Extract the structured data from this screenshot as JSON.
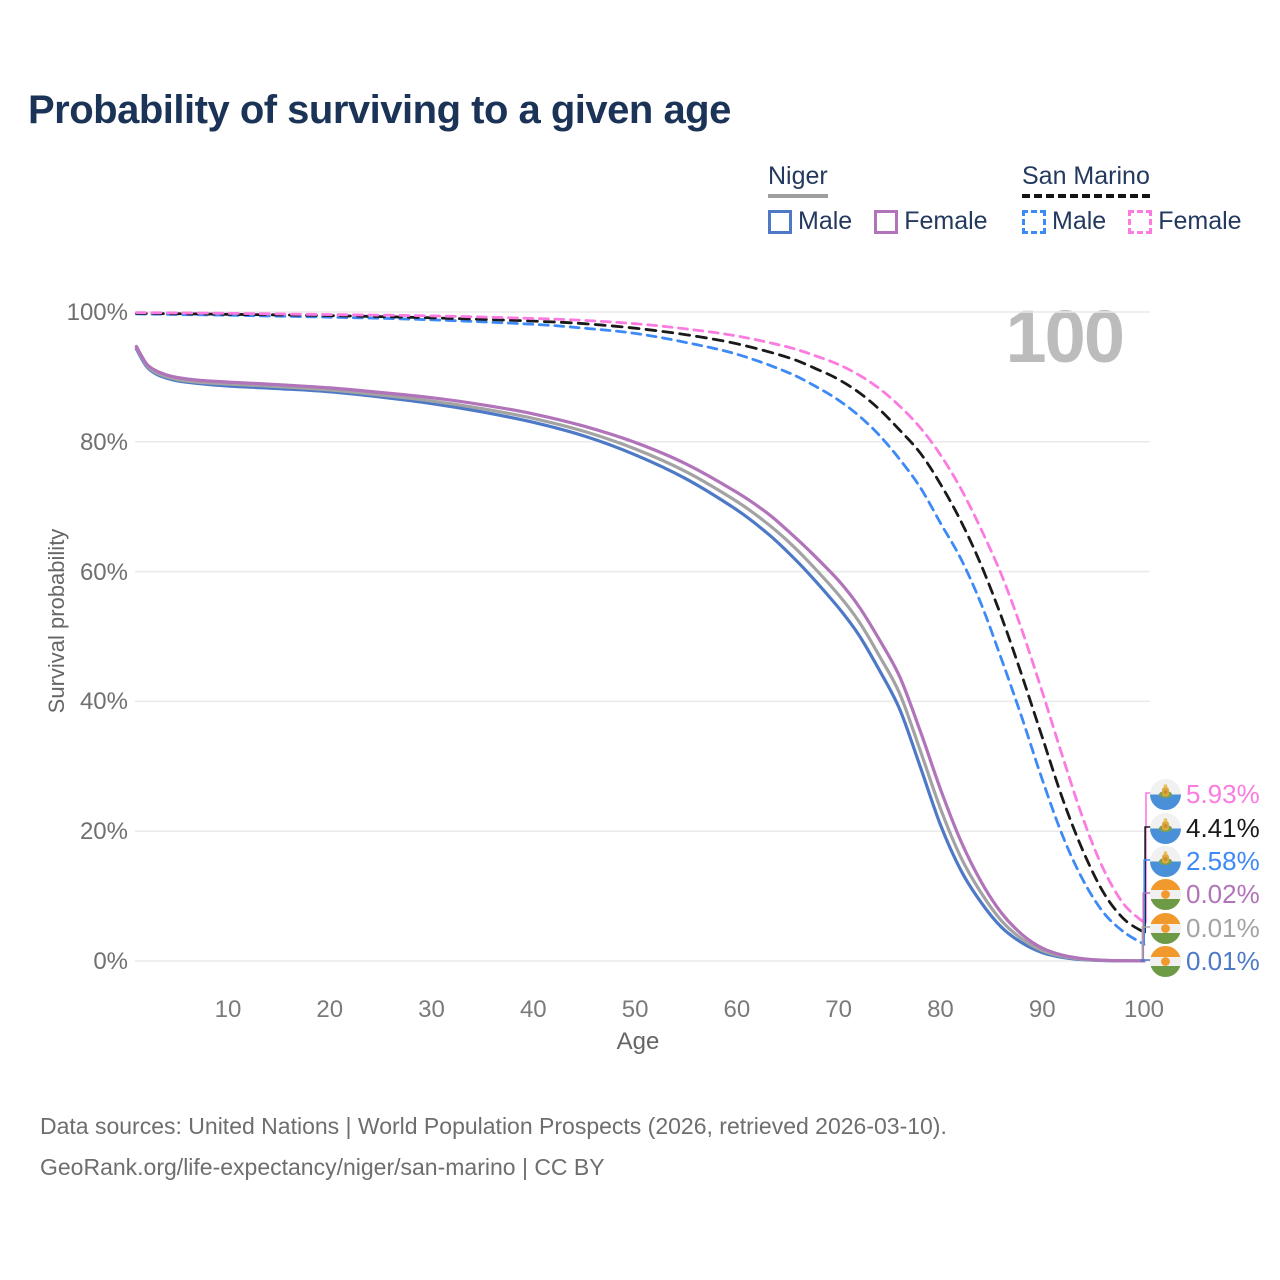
{
  "title": "Probability of surviving to a given age",
  "watermark": "100",
  "legend": {
    "niger": {
      "label": "Niger",
      "male": "Male",
      "female": "Female"
    },
    "san_marino": {
      "label": "San Marino",
      "male": "Male",
      "female": "Female"
    }
  },
  "colors": {
    "title_text": "#1b3357",
    "legend_text": "#23395e",
    "axis_text": "#707070",
    "grid_line": "#eaeaea",
    "watermark": "#bcbcbc",
    "footer_text": "#6e6e6e",
    "niger_male": "#4d79c7",
    "niger_female": "#b173b9",
    "niger_average": "#a3a3a3",
    "san_marino_male": "#3d8af7",
    "san_marino_female": "#fb7be0",
    "san_marino_average": "#1a1a1a"
  },
  "chart_data": {
    "type": "line",
    "title": "Probability of surviving to a given age",
    "xlabel": "Age",
    "ylabel": "Survival probability",
    "xlim": [
      0,
      100
    ],
    "ylim": [
      0,
      100
    ],
    "grid": "horizontal",
    "legend_position": "top-right",
    "y_ticks": [
      {
        "value": 0,
        "label": "0%"
      },
      {
        "value": 20,
        "label": "20%"
      },
      {
        "value": 40,
        "label": "40%"
      },
      {
        "value": 60,
        "label": "60%"
      },
      {
        "value": 80,
        "label": "80%"
      },
      {
        "value": 100,
        "label": "100%"
      }
    ],
    "x_ticks": [
      {
        "value": 10,
        "label": "10"
      },
      {
        "value": 20,
        "label": "20"
      },
      {
        "value": 30,
        "label": "30"
      },
      {
        "value": 40,
        "label": "40"
      },
      {
        "value": 50,
        "label": "50"
      },
      {
        "value": 60,
        "label": "60"
      },
      {
        "value": 70,
        "label": "70"
      },
      {
        "value": 80,
        "label": "80"
      },
      {
        "value": 90,
        "label": "90"
      },
      {
        "value": 100,
        "label": "100"
      }
    ],
    "series": [
      {
        "key": "sm_male",
        "name": "San Marino Male",
        "country": "San Marino",
        "sex": "male",
        "color": "#3d8af7",
        "line_style": "dashed",
        "end_label": "2.58%",
        "points": [
          [
            1,
            99.7
          ],
          [
            10,
            99.5
          ],
          [
            20,
            99.2
          ],
          [
            30,
            98.8
          ],
          [
            40,
            98.1
          ],
          [
            45,
            97.5
          ],
          [
            50,
            96.7
          ],
          [
            55,
            95.3
          ],
          [
            60,
            93.5
          ],
          [
            65,
            90.7
          ],
          [
            68,
            88.3
          ],
          [
            70,
            86.4
          ],
          [
            72,
            84.0
          ],
          [
            74,
            81.0
          ],
          [
            76,
            77.3
          ],
          [
            78,
            73.0
          ],
          [
            80,
            67.5
          ],
          [
            82,
            62.0
          ],
          [
            84,
            55.0
          ],
          [
            86,
            46.5
          ],
          [
            88,
            37.5
          ],
          [
            90,
            28.0
          ],
          [
            92,
            19.3
          ],
          [
            94,
            12.5
          ],
          [
            96,
            7.5
          ],
          [
            98,
            4.5
          ],
          [
            100,
            2.58
          ]
        ]
      },
      {
        "key": "sm_avg",
        "name": "San Marino (both sexes)",
        "country": "San Marino",
        "sex": "both",
        "color": "#1a1a1a",
        "line_style": "dashed",
        "end_label": "4.41%",
        "points": [
          [
            1,
            99.8
          ],
          [
            10,
            99.65
          ],
          [
            20,
            99.45
          ],
          [
            30,
            99.1
          ],
          [
            40,
            98.6
          ],
          [
            45,
            98.2
          ],
          [
            50,
            97.5
          ],
          [
            55,
            96.5
          ],
          [
            60,
            95.1
          ],
          [
            65,
            93.0
          ],
          [
            68,
            91.1
          ],
          [
            70,
            89.6
          ],
          [
            72,
            87.6
          ],
          [
            74,
            85.0
          ],
          [
            76,
            81.8
          ],
          [
            78,
            78.3
          ],
          [
            80,
            73.5
          ],
          [
            82,
            67.8
          ],
          [
            84,
            61.0
          ],
          [
            86,
            53.0
          ],
          [
            88,
            44.0
          ],
          [
            90,
            34.5
          ],
          [
            92,
            25.0
          ],
          [
            94,
            17.0
          ],
          [
            96,
            10.6
          ],
          [
            98,
            6.5
          ],
          [
            100,
            4.41
          ]
        ]
      },
      {
        "key": "sm_female",
        "name": "San Marino Female",
        "country": "San Marino",
        "sex": "female",
        "color": "#fb7be0",
        "line_style": "dashed",
        "end_label": "5.93%",
        "points": [
          [
            1,
            99.9
          ],
          [
            10,
            99.8
          ],
          [
            20,
            99.6
          ],
          [
            30,
            99.4
          ],
          [
            40,
            99.0
          ],
          [
            45,
            98.7
          ],
          [
            50,
            98.2
          ],
          [
            55,
            97.4
          ],
          [
            60,
            96.3
          ],
          [
            65,
            94.6
          ],
          [
            68,
            93.1
          ],
          [
            70,
            91.9
          ],
          [
            72,
            90.3
          ],
          [
            74,
            88.2
          ],
          [
            76,
            85.5
          ],
          [
            78,
            82.2
          ],
          [
            80,
            78.0
          ],
          [
            82,
            72.8
          ],
          [
            84,
            66.5
          ],
          [
            86,
            59.5
          ],
          [
            88,
            51.0
          ],
          [
            90,
            41.5
          ],
          [
            92,
            31.5
          ],
          [
            94,
            22.0
          ],
          [
            96,
            14.2
          ],
          [
            98,
            8.8
          ],
          [
            100,
            5.93
          ]
        ]
      },
      {
        "key": "niger_male",
        "name": "Niger Male",
        "country": "Niger",
        "sex": "male",
        "color": "#4d79c7",
        "line_style": "solid",
        "end_label": "0.01%",
        "points": [
          [
            1,
            94.3
          ],
          [
            2,
            91.6
          ],
          [
            3,
            90.4
          ],
          [
            4,
            89.8
          ],
          [
            5,
            89.4
          ],
          [
            7,
            89.0
          ],
          [
            10,
            88.6
          ],
          [
            15,
            88.2
          ],
          [
            20,
            87.7
          ],
          [
            25,
            86.9
          ],
          [
            30,
            85.9
          ],
          [
            35,
            84.6
          ],
          [
            40,
            83.0
          ],
          [
            45,
            80.9
          ],
          [
            50,
            78.0
          ],
          [
            55,
            74.3
          ],
          [
            60,
            69.5
          ],
          [
            63,
            65.9
          ],
          [
            65,
            63.0
          ],
          [
            67,
            59.8
          ],
          [
            70,
            54.4
          ],
          [
            72,
            50.2
          ],
          [
            74,
            44.8
          ],
          [
            76,
            38.8
          ],
          [
            78,
            30.0
          ],
          [
            80,
            21.0
          ],
          [
            82,
            14.0
          ],
          [
            84,
            9.0
          ],
          [
            86,
            5.2
          ],
          [
            88,
            2.8
          ],
          [
            90,
            1.3
          ],
          [
            92,
            0.55
          ],
          [
            94,
            0.2
          ],
          [
            96,
            0.07
          ],
          [
            98,
            0.02
          ],
          [
            100,
            0.01
          ]
        ]
      },
      {
        "key": "niger_avg",
        "name": "Niger (both sexes)",
        "country": "Niger",
        "sex": "both",
        "color": "#a3a3a3",
        "line_style": "solid",
        "end_label": "0.01%",
        "points": [
          [
            1,
            94.5
          ],
          [
            2,
            91.8
          ],
          [
            3,
            90.6
          ],
          [
            4,
            90.0
          ],
          [
            5,
            89.6
          ],
          [
            7,
            89.2
          ],
          [
            10,
            88.9
          ],
          [
            15,
            88.5
          ],
          [
            20,
            88.0
          ],
          [
            25,
            87.2
          ],
          [
            30,
            86.3
          ],
          [
            35,
            85.1
          ],
          [
            40,
            83.6
          ],
          [
            45,
            81.6
          ],
          [
            50,
            78.9
          ],
          [
            55,
            75.4
          ],
          [
            60,
            70.8
          ],
          [
            63,
            67.4
          ],
          [
            65,
            64.7
          ],
          [
            67,
            61.6
          ],
          [
            70,
            56.4
          ],
          [
            72,
            52.3
          ],
          [
            74,
            47.0
          ],
          [
            76,
            41.2
          ],
          [
            78,
            32.5
          ],
          [
            80,
            23.5
          ],
          [
            82,
            16.0
          ],
          [
            84,
            10.5
          ],
          [
            86,
            6.2
          ],
          [
            88,
            3.4
          ],
          [
            90,
            1.6
          ],
          [
            92,
            0.7
          ],
          [
            94,
            0.25
          ],
          [
            96,
            0.09
          ],
          [
            98,
            0.03
          ],
          [
            100,
            0.01
          ]
        ]
      },
      {
        "key": "niger_female",
        "name": "Niger Female",
        "country": "Niger",
        "sex": "female",
        "color": "#b173b9",
        "line_style": "solid",
        "end_label": "0.02%",
        "points": [
          [
            1,
            94.7
          ],
          [
            2,
            92.0
          ],
          [
            3,
            90.9
          ],
          [
            4,
            90.3
          ],
          [
            5,
            89.9
          ],
          [
            7,
            89.5
          ],
          [
            10,
            89.2
          ],
          [
            15,
            88.8
          ],
          [
            20,
            88.3
          ],
          [
            25,
            87.6
          ],
          [
            30,
            86.8
          ],
          [
            35,
            85.7
          ],
          [
            40,
            84.3
          ],
          [
            45,
            82.4
          ],
          [
            50,
            79.9
          ],
          [
            55,
            76.6
          ],
          [
            60,
            72.2
          ],
          [
            63,
            69.0
          ],
          [
            65,
            66.3
          ],
          [
            67,
            63.4
          ],
          [
            70,
            58.6
          ],
          [
            72,
            54.6
          ],
          [
            74,
            49.5
          ],
          [
            76,
            43.8
          ],
          [
            78,
            35.5
          ],
          [
            80,
            26.5
          ],
          [
            82,
            18.5
          ],
          [
            84,
            12.2
          ],
          [
            86,
            7.4
          ],
          [
            88,
            4.1
          ],
          [
            90,
            2.0
          ],
          [
            92,
            0.9
          ],
          [
            94,
            0.35
          ],
          [
            96,
            0.12
          ],
          [
            98,
            0.04
          ],
          [
            100,
            0.02
          ]
        ]
      }
    ]
  },
  "end_labels": [
    {
      "series": "sm_female",
      "text": "5.93%",
      "color": "#fb7be0",
      "flag": "san-marino"
    },
    {
      "series": "sm_avg",
      "text": "4.41%",
      "color": "#1a1a1a",
      "flag": "san-marino"
    },
    {
      "series": "sm_male",
      "text": "2.58%",
      "color": "#3d8af7",
      "flag": "san-marino"
    },
    {
      "series": "niger_female",
      "text": "0.02%",
      "color": "#b173b9",
      "flag": "niger"
    },
    {
      "series": "niger_avg",
      "text": "0.01%",
      "color": "#a3a3a3",
      "flag": "niger"
    },
    {
      "series": "niger_male",
      "text": "0.01%",
      "color": "#4d79c7",
      "flag": "niger"
    }
  ],
  "footer": {
    "line1": "Data sources: United Nations | World Population Prospects (2026, retrieved 2026-03-10).",
    "line2": "GeoRank.org/life-expectancy/niger/san-marino | CC BY"
  }
}
